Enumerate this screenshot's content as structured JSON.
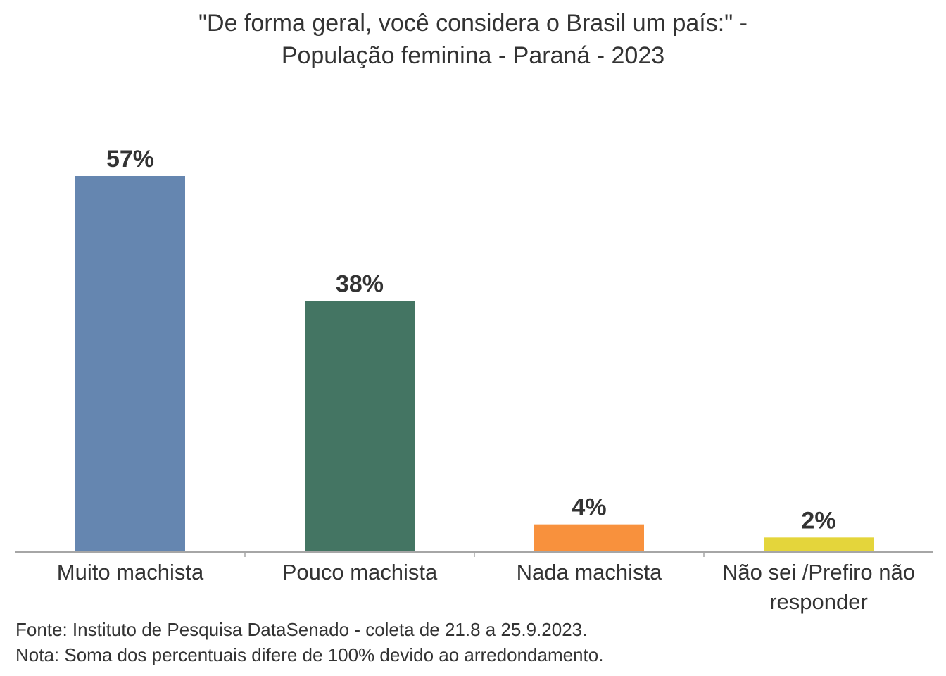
{
  "chart_data": {
    "type": "bar",
    "title_lines": [
      "\"De forma geral, você considera o Brasil um país:\" -",
      "População feminina - Paraná - 2023"
    ],
    "categories": [
      [
        "Muito machista"
      ],
      [
        "Pouco machista"
      ],
      [
        "Nada machista"
      ],
      [
        "Não sei /Prefiro não",
        "responder"
      ]
    ],
    "values": [
      57,
      38,
      4,
      2
    ],
    "value_labels": [
      "57%",
      "38%",
      "4%",
      "2%"
    ],
    "colors": [
      "#6586b0",
      "#447563",
      "#f8913d",
      "#e4d53b"
    ],
    "ylim": [
      0,
      60
    ],
    "grid": false,
    "legend": "none"
  },
  "footer": {
    "source": "Fonte: Instituto de Pesquisa DataSenado - coleta de 21.8 a 25.9.2023.",
    "note": "Nota: Soma dos percentuais difere de 100% devido ao arredondamento."
  }
}
